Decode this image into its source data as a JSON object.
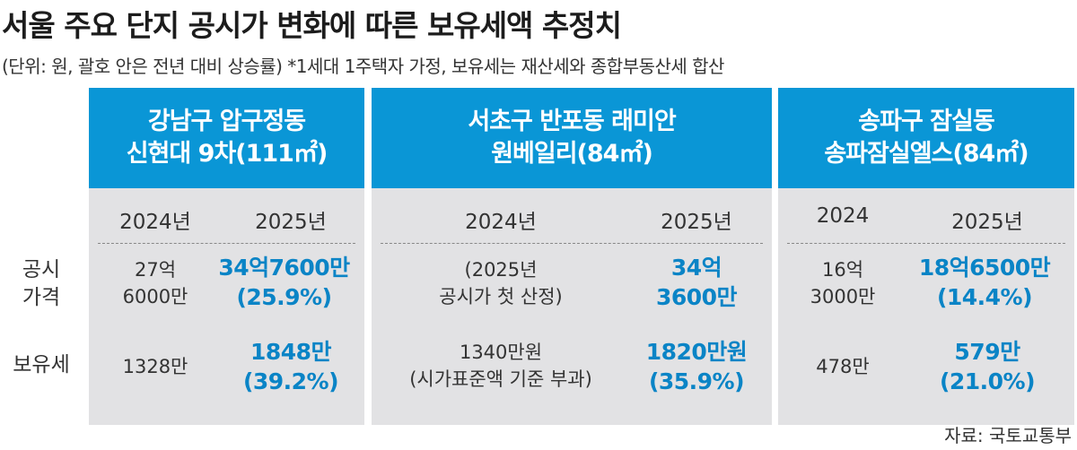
{
  "title": "서울 주요 단지 공시가 변화에 따른 보유세액 추정치",
  "subtitle": "(단위: 원, 괄호 안은 전년 대비 상승률) *1세대 1주택자 가정, 보유세는 재산세와 종합부동산세 합산",
  "row_labels": {
    "price": [
      "공시",
      "가격"
    ],
    "tax": [
      "보유세"
    ]
  },
  "source": "자료: 국토교통부",
  "colors": {
    "header": "#0a96d6",
    "panel": "#e2e2e4",
    "highlight": "#0a84c6"
  },
  "chart_data": {
    "type": "table",
    "columns": [
      {
        "name": [
          "강남구 압구정동",
          "신현대 9차(111㎡)"
        ],
        "years": [
          "2024년",
          "2025년"
        ],
        "price_2024": [
          "27억",
          "6000만"
        ],
        "price_2025": [
          "34억7600만",
          "(25.9%)"
        ],
        "tax_2024": [
          "1328만"
        ],
        "tax_2025": [
          "1848만",
          "(39.2%)"
        ]
      },
      {
        "name": [
          "서초구 반포동 래미안",
          "원베일리(84㎡)"
        ],
        "years": [
          "2024년",
          "2025년"
        ],
        "price_2024": [
          "(2025년",
          "공시가 첫 산정)"
        ],
        "price_2025": [
          "34억",
          "3600만"
        ],
        "tax_2024": [
          "1340만원",
          "(시가표준액 기준 부과)"
        ],
        "tax_2025": [
          "1820만원",
          "(35.9%)"
        ]
      },
      {
        "name": [
          "송파구 잠실동",
          "송파잠실엘스(84㎡)"
        ],
        "years": [
          "2024",
          "2025년"
        ],
        "price_2024": [
          "16억",
          "3000만"
        ],
        "price_2025": [
          "18억6500만",
          "(14.4%)"
        ],
        "tax_2024": [
          "478만"
        ],
        "tax_2025": [
          "579만",
          "(21.0%)"
        ]
      }
    ]
  }
}
